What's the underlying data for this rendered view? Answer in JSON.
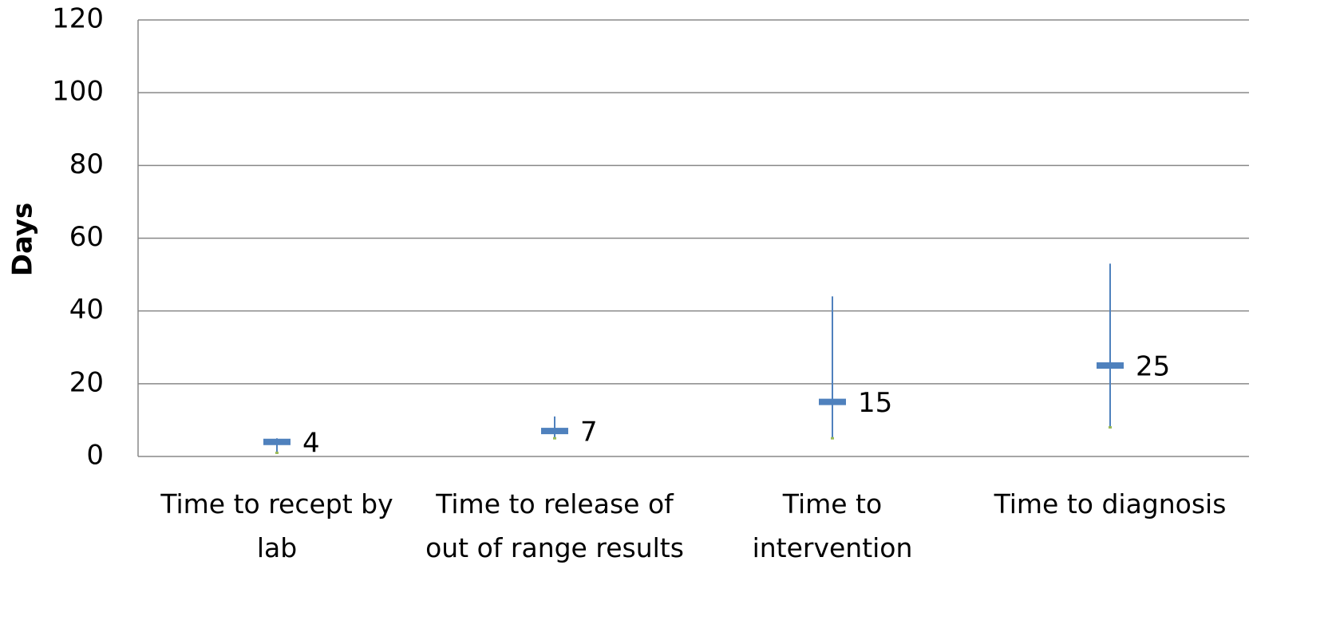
{
  "chart_data": {
    "type": "stock",
    "y_label": "Days",
    "categories": [
      "Time to recept by lab",
      "Time to release of out of range results",
      "Time to intervention",
      "Time to diagnosis"
    ],
    "values": [
      4,
      7,
      15,
      25
    ],
    "high": [
      5,
      11,
      44,
      53
    ],
    "low": [
      1,
      5,
      5,
      8
    ],
    "color": "#4f81bd",
    "low_color": "#9bbb59",
    "ylim": [
      0,
      120
    ],
    "yticks": [
      0,
      20,
      40,
      60,
      80,
      100,
      120
    ],
    "grid": true
  }
}
